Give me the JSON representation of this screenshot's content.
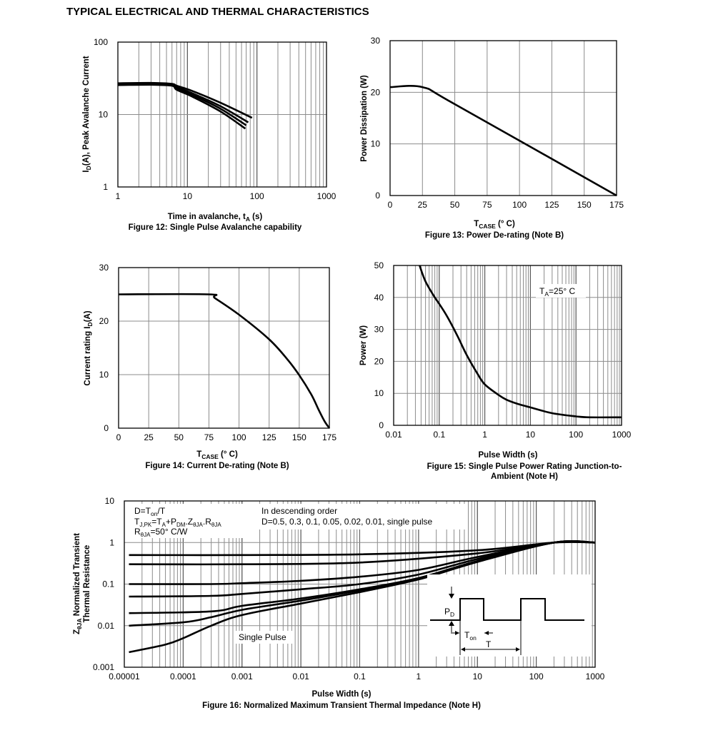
{
  "page_title": "TYPICAL ELECTRICAL AND THERMAL CHARACTERISTICS",
  "chart_data": [
    {
      "id": "fig12",
      "type": "line",
      "xscale": "log",
      "yscale": "log",
      "xlim": [
        1,
        1000
      ],
      "ylim": [
        1,
        100
      ],
      "xticks": [
        "1",
        "10",
        "100",
        "1000"
      ],
      "yticks": [
        "1",
        "10",
        "100"
      ],
      "xlabel": "Time in avalanche, t",
      "xlabel_sub": "A",
      "xlabel_unit": " (s)",
      "ylabel_pre": "I",
      "ylabel_sub": "D",
      "ylabel_post": "(A), Peak Avalanche Current",
      "title": "Figure 12: Single Pulse Avalanche capability",
      "series": [
        {
          "x": [
            1,
            3,
            6,
            7,
            12,
            30,
            85
          ],
          "y": [
            27,
            27.3,
            26.5,
            25,
            21,
            14.5,
            9
          ]
        },
        {
          "x": [
            1,
            3,
            6,
            7,
            12,
            30,
            75
          ],
          "y": [
            26.5,
            26.8,
            26,
            24,
            19.5,
            13,
            7.8
          ]
        },
        {
          "x": [
            1,
            3,
            6,
            7,
            12,
            30,
            70
          ],
          "y": [
            26,
            26.3,
            25.5,
            23,
            18.5,
            12,
            7.1
          ]
        },
        {
          "x": [
            1,
            3,
            6,
            7,
            12,
            30,
            68
          ],
          "y": [
            25.5,
            25.8,
            25,
            22,
            17.5,
            11,
            6.4
          ]
        }
      ]
    },
    {
      "id": "fig13",
      "type": "line",
      "xlim": [
        0,
        175
      ],
      "ylim": [
        0,
        30
      ],
      "xticks": [
        "0",
        "25",
        "50",
        "75",
        "100",
        "125",
        "150",
        "175"
      ],
      "yticks": [
        "0",
        "10",
        "20",
        "30"
      ],
      "xlabel_pre": "T",
      "xlabel_sub": "CASE",
      "xlabel_post": " (° C)",
      "ylabel": "Power Dissipation (W)",
      "title": "Figure 13: Power De-rating (Note B)",
      "series": [
        {
          "x": [
            0,
            25,
            50,
            175
          ],
          "y": [
            21,
            21,
            17.7,
            0
          ]
        }
      ]
    },
    {
      "id": "fig14",
      "type": "line",
      "xlim": [
        0,
        175
      ],
      "ylim": [
        0,
        30
      ],
      "xticks": [
        "0",
        "25",
        "50",
        "75",
        "100",
        "125",
        "150",
        "175"
      ],
      "yticks": [
        "0",
        "10",
        "20",
        "30"
      ],
      "xlabel_pre": "T",
      "xlabel_sub": "CASE",
      "xlabel_post": " (° C)",
      "ylabel_pre": "Current rating I",
      "ylabel_sub": "D",
      "ylabel_post": "(A)",
      "title": "Figure 14: Current De-rating (Note B)",
      "series": [
        {
          "x": [
            0,
            75,
            80,
            100,
            125,
            140,
            150,
            160,
            166,
            171,
            175
          ],
          "y": [
            25,
            25,
            24.3,
            21.2,
            16.6,
            12.9,
            9.9,
            6.3,
            3.5,
            1.3,
            0
          ]
        }
      ]
    },
    {
      "id": "fig15",
      "type": "line",
      "xscale": "log",
      "xlim": [
        0.01,
        1000
      ],
      "ylim": [
        0,
        50
      ],
      "xticks": [
        "0.01",
        "0.1",
        "1",
        "10",
        "100",
        "1000"
      ],
      "yticks": [
        "0",
        "10",
        "20",
        "30",
        "40",
        "50"
      ],
      "xlabel": "Pulse Width (s)",
      "ylabel": "Power (W)",
      "annotation_pre": "T",
      "annotation_sub": "A",
      "annotation_post": "=25° C",
      "title_line1": "Figure 15: Single Pulse Power Rating Junction-to-",
      "title_line2": "Ambient (Note H)",
      "series": [
        {
          "x": [
            0.037,
            0.05,
            0.08,
            0.1,
            0.15,
            0.25,
            0.4,
            0.7,
            1,
            2,
            3,
            5,
            10,
            30,
            100,
            200,
            1000
          ],
          "y": [
            50,
            45,
            40,
            38,
            34,
            28,
            22,
            16,
            12.8,
            9.5,
            8,
            6.8,
            5.6,
            3.8,
            2.8,
            2.5,
            2.5
          ]
        }
      ]
    },
    {
      "id": "fig16",
      "type": "line",
      "xscale": "log",
      "yscale": "log",
      "xlim": [
        1e-05,
        1000
      ],
      "ylim": [
        0.001,
        10
      ],
      "xticks": [
        "0.00001",
        "0.0001",
        "0.001",
        "0.01",
        "0.1",
        "1",
        "10",
        "100",
        "1000"
      ],
      "yticks": [
        "0.001",
        "0.01",
        "0.1",
        "1",
        "10"
      ],
      "xlabel": "Pulse Width (s)",
      "ylabel_pre": "Z",
      "ylabel_sub": "θJA",
      "ylabel_post": " Normalized Transient",
      "ylabel2": "Thermal Resistance",
      "title": "Figure 16: Normalized Maximum Transient Thermal Impedance (Note H)",
      "note_d": {
        "a": "D=T",
        "b": "on",
        "c": "/T"
      },
      "note_t": {
        "a": "T",
        "b": "J,PK",
        "c": "=T",
        "d": "A",
        "e": "+P",
        "f": "DM",
        "g": ".Z",
        "h": "θJA",
        "i": ".R",
        "j": "θJA"
      },
      "note_r": {
        "a": "R",
        "b": "θJA",
        "c": "=50° C/W"
      },
      "order_line1": "In descending order",
      "order_line2": "D=0.5, 0.3, 0.1, 0.05, 0.02, 0.01, single pulse",
      "single_pulse_label": "Single Pulse",
      "inset": {
        "pd_a": "P",
        "pd_b": "D",
        "ton_a": "T",
        "ton_b": "on",
        "t": "T"
      },
      "series": [
        {
          "name": "D=0.5",
          "x": [
            1.2e-05,
            0.001,
            0.1,
            10,
            200,
            1000
          ],
          "y": [
            0.5,
            0.5,
            0.52,
            0.65,
            1,
            1
          ]
        },
        {
          "name": "D=0.3",
          "x": [
            1.2e-05,
            0.001,
            0.1,
            10,
            200,
            1000
          ],
          "y": [
            0.3,
            0.3,
            0.33,
            0.55,
            1,
            1
          ]
        },
        {
          "name": "D=0.1",
          "x": [
            1.2e-05,
            0.0003,
            0.001,
            0.01,
            0.1,
            1,
            10,
            200,
            1000
          ],
          "y": [
            0.1,
            0.1,
            0.105,
            0.12,
            0.15,
            0.22,
            0.45,
            1,
            1
          ]
        },
        {
          "name": "D=0.05",
          "x": [
            1.2e-05,
            0.0003,
            0.001,
            0.01,
            0.1,
            1,
            10,
            200,
            1000
          ],
          "y": [
            0.05,
            0.052,
            0.058,
            0.075,
            0.1,
            0.17,
            0.4,
            1,
            1
          ]
        },
        {
          "name": "D=0.02",
          "x": [
            1.2e-05,
            0.0003,
            0.001,
            0.01,
            0.1,
            1,
            10,
            200,
            1000
          ],
          "y": [
            0.02,
            0.022,
            0.03,
            0.045,
            0.075,
            0.14,
            0.36,
            1,
            1
          ]
        },
        {
          "name": "D=0.01",
          "x": [
            1.2e-05,
            0.0001,
            0.0003,
            0.001,
            0.01,
            0.1,
            1,
            10,
            200,
            1000
          ],
          "y": [
            0.01,
            0.012,
            0.016,
            0.024,
            0.04,
            0.07,
            0.13,
            0.35,
            1,
            1
          ]
        },
        {
          "name": "Single Pulse",
          "x": [
            1.2e-05,
            5e-05,
            0.0001,
            0.0003,
            0.001,
            0.01,
            0.1,
            1,
            10,
            200,
            1000
          ],
          "y": [
            0.0023,
            0.0035,
            0.005,
            0.01,
            0.018,
            0.034,
            0.064,
            0.13,
            0.34,
            1,
            1
          ]
        }
      ]
    }
  ]
}
